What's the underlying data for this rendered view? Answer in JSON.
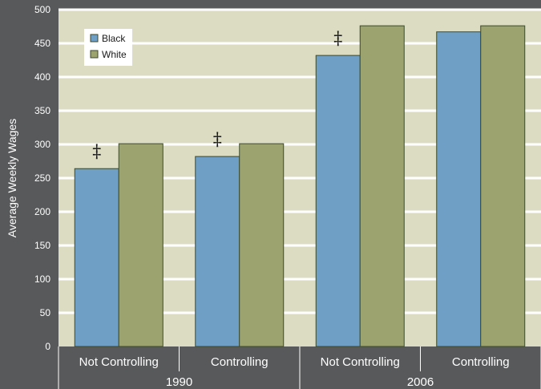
{
  "chart_data": {
    "type": "bar",
    "ylabel": "Average Weekly Wages",
    "ylim": [
      0,
      500
    ],
    "yticks": [
      0,
      50,
      100,
      150,
      200,
      250,
      300,
      350,
      400,
      450,
      500
    ],
    "grid": true,
    "legend_position": "top-left",
    "groups": [
      {
        "label": "1990",
        "categories": [
          "Not Controlling",
          "Controlling"
        ]
      },
      {
        "label": "2006",
        "categories": [
          "Not Controlling",
          "Controlling"
        ]
      }
    ],
    "categories": [
      "Not Controlling",
      "Controlling",
      "Not Controlling",
      "Controlling"
    ],
    "series": [
      {
        "name": "Black",
        "color": "#6f9fc4",
        "values": [
          264,
          282,
          432,
          467
        ]
      },
      {
        "name": "White",
        "color": "#9ca36f",
        "values": [
          301,
          301,
          476,
          476
        ]
      }
    ],
    "significance_marker": "‡",
    "marked_categories": [
      0,
      1,
      2
    ],
    "colors": {
      "plot_background": "#dcdcc3",
      "page_background": "#58595b",
      "gridline": "#ffffff"
    }
  }
}
